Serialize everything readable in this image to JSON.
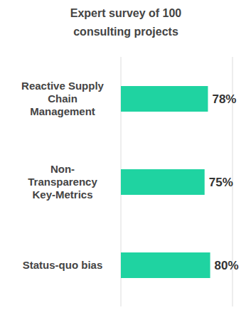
{
  "chart_data": {
    "type": "bar",
    "title": "Expert survey of 100 consulting projects",
    "categories": [
      "Reactive Supply Chain Management",
      "Non-Transparency Key-Metrics",
      "Status-quo bias"
    ],
    "values": [
      78,
      75,
      80
    ],
    "value_labels": [
      "78%",
      "75%",
      "80%"
    ],
    "color": "#1fd3a1",
    "orientation": "horizontal",
    "xlim": [
      0,
      100
    ],
    "xticks": [
      0,
      50,
      100
    ],
    "grid": true,
    "data_labels": true,
    "tick_labels": "y"
  }
}
